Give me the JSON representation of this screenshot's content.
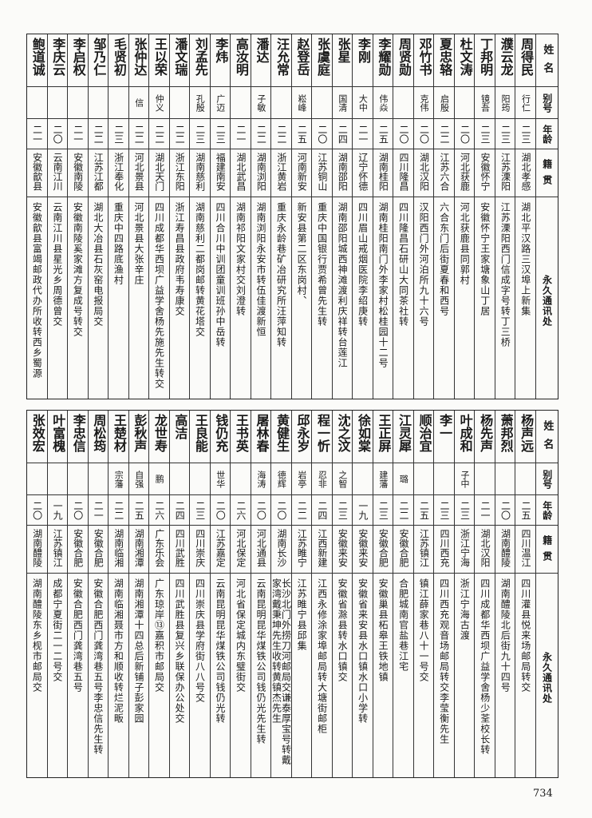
{
  "headers": {
    "name": "姓名",
    "alias": "别号",
    "age": "年龄",
    "native": "籍贯",
    "address": "永久通讯处"
  },
  "tables": [
    [
      {
        "name": "周得民",
        "alias": "行仁",
        "age": "二三",
        "native": "湖北孝感",
        "address": "湖北平汉路三汉埠上新集"
      },
      {
        "name": "濮云龙",
        "alias": "阳筠",
        "age": "二三",
        "native": "江苏溧阳",
        "address": "江苏溧阳西门信成字号转丁三桥"
      },
      {
        "name": "丁邦明",
        "alias": "镜吾",
        "age": "二三",
        "native": "安徽怀宁",
        "address": "安徽怀宁王家塘象山丁居"
      },
      {
        "name": "杜文涛",
        "alias": "",
        "age": "二〇",
        "native": "河北获鹿",
        "address": "河北获鹿县同郭村"
      },
      {
        "name": "夏忠辂",
        "alias": "启殷",
        "age": "二二",
        "native": "江苏六合",
        "address": "六合东门后街夏春和西号"
      },
      {
        "name": "邓竹书",
        "alias": "克伟",
        "age": "二〇",
        "native": "湖北汉阳",
        "address": "汉阳西门外河泊所九十六号"
      },
      {
        "name": "周贤勋",
        "alias": "",
        "age": "二〇",
        "native": "四川隆昌",
        "address": "四川隆昌石研山大同茶社转"
      },
      {
        "name": "李耀勋",
        "alias": "伟焱",
        "age": "二五",
        "native": "湖南桂阳",
        "address": "湖南桂阳南门外李家村松桂园十二号"
      },
      {
        "name": "李刚",
        "alias": "大中",
        "age": "二一",
        "native": "辽宁怀德",
        "address": "四川眉山戒烟医院李绍庚转"
      },
      {
        "name": "张星",
        "alias": "国清",
        "age": "二四",
        "native": "湖南邵阳",
        "address": "湖南邵阳城西神滩渡利庆祥转台莲江"
      },
      {
        "name": "张虞庭",
        "alias": "",
        "age": "二〇",
        "native": "江苏铜山",
        "address": "重庆中国银行贾希曾先生转"
      },
      {
        "name": "赵登岳",
        "alias": "崧峰",
        "age": "二五",
        "native": "河南新安",
        "address": "新安县第二区东岗村、"
      },
      {
        "name": "汪允常",
        "alias": "",
        "age": "二二",
        "native": "浙江黄岩",
        "address": "重庆永龄巷矿冶研究所汪萍知转"
      },
      {
        "name": "潘达",
        "alias": "子敏",
        "age": "二二",
        "native": "湖南浏阳",
        "address": "湖南浏阳永安市转伍佳渡新恒"
      },
      {
        "name": "高汝明",
        "alias": "",
        "age": "二一",
        "native": "湖北武昌",
        "address": "湖南祁阳文家村交刘澄转"
      },
      {
        "name": "李炜",
        "alias": "广迈",
        "age": "二三",
        "native": "福建南安",
        "address": "四川合川中训团童训班孙中岳转"
      },
      {
        "name": "刘孟先",
        "alias": "孔殷",
        "age": "二三",
        "native": "湖南慈利",
        "address": "湖南慈利二都岗邮转黄花塔交"
      },
      {
        "name": "潘文瑞",
        "alias": "",
        "age": "二二",
        "native": "浙江东阳",
        "address": "浙江寿昌县政府韦寿康交"
      },
      {
        "name": "王以荣",
        "alias": "仲义",
        "age": "二二",
        "native": "湖北天门",
        "address": "四川成都华西坝广益学舍杨先施先生转交"
      },
      {
        "name": "张仲达",
        "alias": "信",
        "age": "二二",
        "native": "河北景县",
        "address": "河北景县大张辛庄"
      },
      {
        "name": "毛贤初",
        "alias": "",
        "age": "二三",
        "native": "浙江奉化",
        "address": "重庆中四路底渔村"
      },
      {
        "name": "邹乃仁",
        "alias": "",
        "age": "二二",
        "native": "江苏江都",
        "address": "湖北大冶县石灰窑电报局交"
      },
      {
        "name": "李启权",
        "alias": "",
        "age": "二一",
        "native": "安徽南陵",
        "address": "安徽南陵奚家滩方复成号转交"
      },
      {
        "name": "李庆云",
        "alias": "",
        "age": "二〇",
        "native": "云南江川",
        "address": "云南江川县星光乡周德曾交"
      },
      {
        "name": "鲍道诚",
        "alias": "",
        "age": "二一",
        "native": "安徽歙县",
        "address": "安徽歙县富竭邮政代办所收转西乡蜀源"
      }
    ],
    [
      {
        "name": "杨声远",
        "alias": "",
        "age": "二五",
        "native": "四川温江",
        "address": "四川灌县悦来场邮局转交"
      },
      {
        "name": "萧邦烈",
        "alias": "",
        "age": "二〇",
        "native": "湖南醴陵",
        "address": "湖南醴陵北后街九十四号"
      },
      {
        "name": "杨先声",
        "alias": "",
        "age": "二一",
        "native": "湖北汉阳",
        "address": "四川成都华西坝广益学舍杨少荃校长转"
      },
      {
        "name": "叶成和",
        "alias": "子中",
        "age": "二三",
        "native": "浙江宁海",
        "address": "浙江宁海古渡"
      },
      {
        "name": "李一",
        "alias": "",
        "age": "二三",
        "native": "四川西充",
        "address": "四川西充观音场邮局转交李莹衡先生"
      },
      {
        "name": "顺治宜",
        "alias": "",
        "age": "二五",
        "native": "江苏镇江",
        "address": "镇江薛家巷八十一号交"
      },
      {
        "name": "江灵犀",
        "alias": "璐",
        "age": "二二",
        "native": "安徽合肥",
        "address": "合肥城南官盐巷江宅"
      },
      {
        "name": "王正屏",
        "alias": "建藩",
        "age": "二三",
        "native": "安徽合肥",
        "address": "安徽巢县柘皋王铁地镇"
      },
      {
        "name": "徐如棠",
        "alias": "",
        "age": "一九",
        "native": "安徽来安",
        "address": "安徽省来安县水口镇水口小学转"
      },
      {
        "name": "沈之汶",
        "alias": "之智",
        "age": "二三",
        "native": "安徽来安",
        "address": "安徽省滁县转水口镇交"
      },
      {
        "name": "程一忻",
        "alias": "忍非",
        "age": "二四",
        "native": "江西新建",
        "address": "江西永修涂家埠邮局转大塘街邮柜"
      },
      {
        "name": "邱永岁",
        "alias": "岩亭",
        "age": "二二",
        "native": "江苏睢宁",
        "address": "江苏睢宁县邱集"
      },
      {
        "name": "黄健生",
        "alias": "德辉",
        "age": "二〇",
        "native": "湖南长沙",
        "address": "长沙北门外捞刀河邮局交谦泰厚宝号转戴家湾戴秉坤先生收转黄镇杰先生"
      },
      {
        "name": "屠林春",
        "alias": "海涛",
        "age": "二〇",
        "native": "河北通县",
        "address": "云南昆明昆华煤铁公司钱仍光先生转"
      },
      {
        "name": "王书英",
        "alias": "",
        "age": "二六",
        "native": "河北保定",
        "address": "河北省保定城内东璧街交"
      },
      {
        "name": "钱仍充",
        "alias": "世华",
        "age": "二〇",
        "native": "江苏嘉定",
        "address": "云南昆明昆华煤铁公司钱仍光转"
      },
      {
        "name": "王良能",
        "alias": "",
        "age": "二三",
        "native": "四川崇庆",
        "address": "四川崇庆县学府街八八号交"
      },
      {
        "name": "高洁",
        "alias": "",
        "age": "二四",
        "native": "四川武胜",
        "address": "四川武胜县复兴乡联保办公处交"
      },
      {
        "name": "龙世寿",
        "alias": "鹏",
        "age": "二六",
        "native": "广东乐会",
        "address": "广东琼岸⑬嘉积市邮局交"
      },
      {
        "name": "彭秋声",
        "alias": "自强",
        "age": "二五",
        "native": "湖南湘潭",
        "address": "湖南湘潭十四总后新铺子彭家园"
      },
      {
        "name": "王楚材",
        "alias": "宗藩",
        "age": "二二",
        "native": "湖南临湘",
        "address": "湖南临湘聂市方和顺收转烂泥畈"
      },
      {
        "name": "周松筠",
        "alias": "",
        "age": "二一",
        "native": "安徽合肥",
        "address": "安徽合肥西门龚湾巷五号李忠信先生转"
      },
      {
        "name": "李忠信",
        "alias": "",
        "age": "二〇",
        "native": "安徽合肥",
        "address": "安徽合肥西门龚湾巷五号"
      },
      {
        "name": "叶富槐",
        "alias": "",
        "age": "一九",
        "native": "江苏镇江",
        "address": "成都宁夏街二一二号交"
      },
      {
        "name": "张效宏",
        "alias": "",
        "age": "二〇",
        "native": "湖南醴陵",
        "address": "湖南醴陵东乡枧市邮局交"
      }
    ]
  ],
  "page_number": "734"
}
